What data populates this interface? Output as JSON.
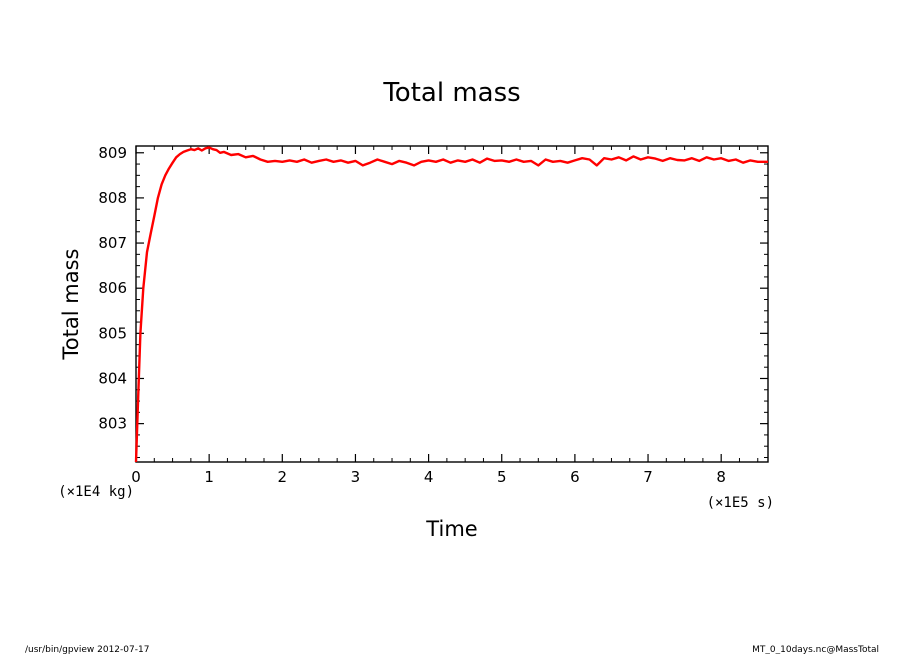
{
  "footer": {
    "left": "/usr/bin/gpview   2012-07-17",
    "right": "MT_0_10days.nc@MassTotal"
  },
  "chart_data": {
    "type": "line",
    "title": "Total mass",
    "xlabel": "Time",
    "ylabel": "Total mass",
    "x_unit_label": "(×1E5 s)",
    "y_unit_label": "(×1E4 kg)",
    "xlim": [
      0,
      8.64
    ],
    "ylim": [
      802.15,
      809.15
    ],
    "x_ticks": [
      0,
      1,
      2,
      3,
      4,
      5,
      6,
      7,
      8
    ],
    "x_tick_labels": [
      "0",
      "1",
      "2",
      "3",
      "4",
      "5",
      "6",
      "7",
      "8"
    ],
    "y_ticks": [
      803,
      804,
      805,
      806,
      807,
      808,
      809
    ],
    "y_tick_labels": [
      "803",
      "804",
      "805",
      "806",
      "807",
      "808",
      "809"
    ],
    "grid": false,
    "line_color": "#ff0000",
    "series": [
      {
        "x": [
          0,
          0.03,
          0.06,
          0.1,
          0.15,
          0.2,
          0.25,
          0.3,
          0.35,
          0.4,
          0.45,
          0.5,
          0.55,
          0.6,
          0.65,
          0.7,
          0.75,
          0.8,
          0.85,
          0.9,
          0.95,
          1.0,
          1.05,
          1.1,
          1.15,
          1.2,
          1.3,
          1.4,
          1.5,
          1.6,
          1.7,
          1.8,
          1.9,
          2.0,
          2.1,
          2.2,
          2.3,
          2.4,
          2.5,
          2.6,
          2.7,
          2.8,
          2.9,
          3.0,
          3.1,
          3.2,
          3.3,
          3.4,
          3.5,
          3.6,
          3.7,
          3.8,
          3.9,
          4.0,
          4.1,
          4.2,
          4.3,
          4.4,
          4.5,
          4.6,
          4.7,
          4.8,
          4.9,
          5.0,
          5.1,
          5.2,
          5.3,
          5.4,
          5.5,
          5.6,
          5.7,
          5.8,
          5.9,
          6.0,
          6.1,
          6.2,
          6.3,
          6.4,
          6.5,
          6.6,
          6.7,
          6.8,
          6.9,
          7.0,
          7.1,
          7.2,
          7.3,
          7.4,
          7.5,
          7.6,
          7.7,
          7.8,
          7.9,
          8.0,
          8.1,
          8.2,
          8.3,
          8.4,
          8.5,
          8.64
        ],
        "y": [
          802.15,
          803.6,
          805.0,
          806.0,
          806.8,
          807.2,
          807.6,
          808.0,
          808.3,
          808.5,
          808.65,
          808.78,
          808.9,
          808.97,
          809.02,
          809.05,
          809.08,
          809.06,
          809.1,
          809.05,
          809.1,
          809.12,
          809.08,
          809.06,
          809.0,
          809.02,
          808.95,
          808.97,
          808.9,
          808.93,
          808.85,
          808.8,
          808.82,
          808.8,
          808.83,
          808.8,
          808.85,
          808.78,
          808.82,
          808.85,
          808.8,
          808.83,
          808.78,
          808.82,
          808.72,
          808.78,
          808.85,
          808.8,
          808.75,
          808.82,
          808.78,
          808.72,
          808.8,
          808.83,
          808.8,
          808.85,
          808.78,
          808.83,
          808.8,
          808.85,
          808.78,
          808.87,
          808.82,
          808.83,
          808.8,
          808.85,
          808.8,
          808.82,
          808.72,
          808.85,
          808.8,
          808.82,
          808.78,
          808.83,
          808.88,
          808.85,
          808.72,
          808.88,
          808.85,
          808.9,
          808.83,
          808.92,
          808.85,
          808.9,
          808.87,
          808.82,
          808.88,
          808.84,
          808.83,
          808.88,
          808.82,
          808.9,
          808.85,
          808.88,
          808.82,
          808.85,
          808.78,
          808.83,
          808.8,
          808.8
        ]
      }
    ]
  }
}
